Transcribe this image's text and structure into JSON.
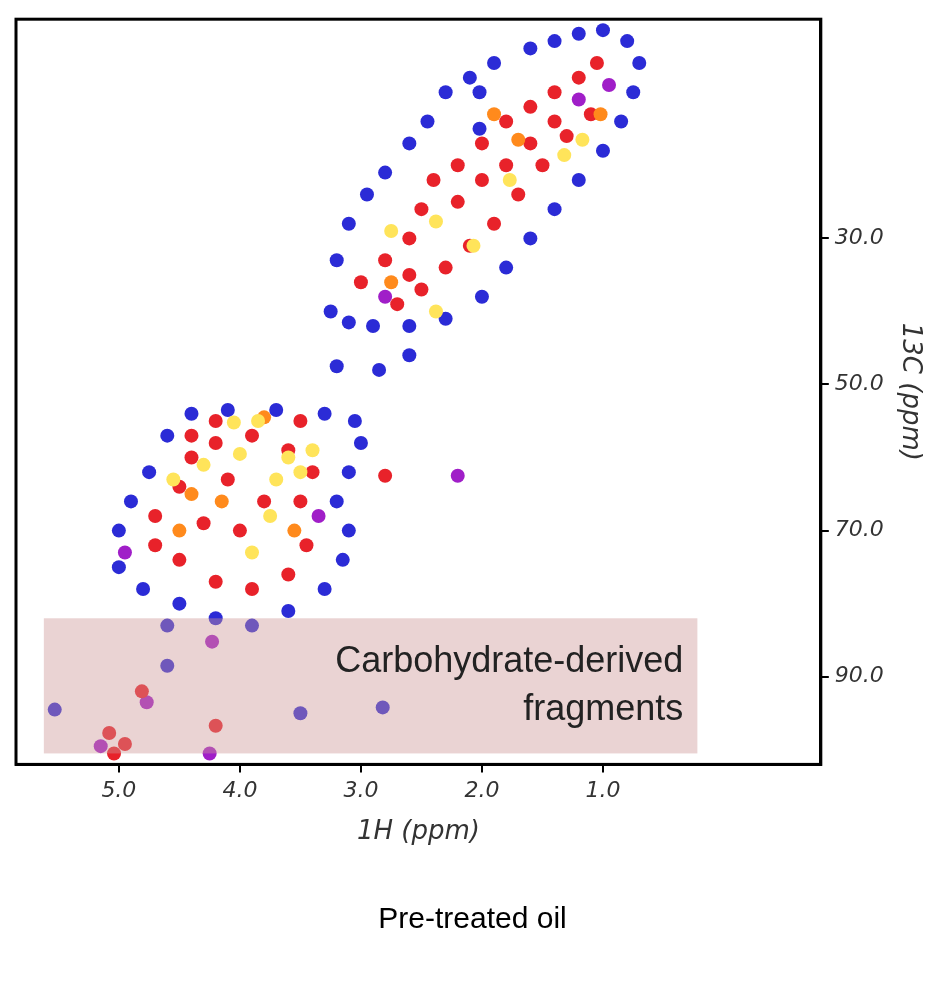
{
  "chart_data": {
    "type": "scatter",
    "title": "Pre-treated oil",
    "x_label": "1H (ppm)",
    "y_label": "13C (ppm)",
    "marker": "circle",
    "grid": false,
    "xlim": [
      5.85,
      -0.8
    ],
    "ylim": [
      102,
      0
    ],
    "xticks": [
      {
        "value": 5,
        "label": "5.0"
      },
      {
        "value": 4,
        "label": "4.0"
      },
      {
        "value": 3,
        "label": "3.0"
      },
      {
        "value": 2,
        "label": "2.0"
      },
      {
        "value": 1,
        "label": "1.0"
      }
    ],
    "yticks": [
      {
        "value": 30,
        "label": "30.0"
      },
      {
        "value": 50,
        "label": "50.0"
      },
      {
        "value": 70,
        "label": "70.0"
      },
      {
        "value": 90,
        "label": "90.0"
      }
    ],
    "annotations": [
      {
        "lines": [
          "Carbohydrate-derived",
          "fragments"
        ],
        "x": [
          5.62,
          0.22
        ],
        "y": [
          82,
          100.5
        ]
      }
    ],
    "x": [
      3.25,
      3.2,
      3.1,
      2.95,
      2.8,
      2.6,
      2.45,
      2.3,
      2.1,
      1.9,
      1.6,
      1.4,
      1.2,
      1.0,
      0.8,
      0.7,
      0.75,
      0.85,
      1.0,
      1.2,
      1.4,
      1.6,
      1.8,
      2.0,
      2.3,
      2.6,
      2.9,
      3.1,
      2.02,
      2.02,
      5.0,
      4.9,
      4.75,
      4.6,
      4.4,
      4.1,
      3.7,
      3.3,
      3.05,
      3.0,
      3.1,
      3.2,
      3.1,
      3.15,
      3.3,
      3.6,
      3.9,
      4.2,
      4.5,
      4.8,
      5.0,
      4.6,
      3.2,
      2.85,
      2.6,
      3.5,
      2.82,
      5.53,
      4.6,
      2.2,
      4.23,
      4.25,
      4.77,
      5.15,
      2.8,
      1.2,
      0.95,
      4.95,
      3.35,
      3.0,
      2.8,
      2.6,
      2.5,
      2.4,
      2.2,
      2.0,
      1.8,
      1.6,
      1.4,
      1.2,
      1.05,
      1.1,
      1.3,
      1.5,
      1.7,
      1.9,
      2.1,
      2.3,
      2.5,
      2.7,
      2.2,
      1.8,
      1.4,
      2.6,
      2.0,
      1.6,
      4.7,
      4.5,
      4.4,
      4.2,
      3.9,
      3.6,
      3.4,
      3.45,
      3.6,
      3.9,
      4.2,
      4.5,
      4.7,
      4.0,
      4.3,
      3.8,
      4.1,
      3.5,
      4.4,
      4.2,
      3.5,
      2.8,
      4.81,
      5.08,
      4.2,
      5.04,
      4.95,
      2.75,
      1.7,
      1.9,
      1.02,
      4.15,
      4.4,
      4.5,
      3.55,
      3.8,
      2.38,
      2.75,
      2.07,
      1.77,
      1.32,
      1.17,
      2.38,
      3.6,
      3.5,
      3.7,
      3.4,
      4.0,
      4.3,
      4.55,
      3.75,
      3.9,
      3.85,
      4.05
    ],
    "values": [
      40,
      33,
      28,
      24,
      21,
      17,
      14,
      10,
      8,
      6,
      4,
      3,
      2,
      1.5,
      3,
      6,
      10,
      14,
      18,
      22,
      26,
      30,
      34,
      38,
      41,
      42,
      42,
      41.5,
      10,
      15,
      70,
      66,
      62,
      57,
      54,
      53.5,
      53.5,
      54,
      55,
      58,
      62,
      66,
      70,
      74,
      78,
      81,
      83,
      82,
      80,
      78,
      75,
      83,
      47.5,
      48,
      46,
      95,
      94.2,
      94.5,
      88.5,
      62.5,
      85.2,
      100.5,
      93.5,
      99.5,
      38,
      11,
      9,
      73,
      68,
      36,
      33,
      30,
      26,
      22,
      20,
      17,
      14,
      12,
      10,
      8,
      6,
      13,
      16,
      20,
      24,
      28,
      31,
      34,
      37,
      39,
      25,
      20,
      14,
      35,
      22,
      17,
      68,
      64,
      60,
      58,
      57,
      59,
      62,
      72,
      76,
      78,
      77,
      74,
      72,
      70,
      69,
      66,
      63,
      66,
      57,
      55,
      55,
      62.5,
      92,
      97.7,
      96.7,
      100.5,
      99.2,
      36,
      16.5,
      13,
      13,
      66,
      65,
      70,
      70,
      54.5,
      27.7,
      29,
      31,
      22,
      18.6,
      16.5,
      40,
      60,
      62,
      63,
      59,
      59.5,
      61,
      63,
      68,
      73,
      55,
      55.2
    ],
    "colors": [
      "#2b2bd6",
      "#2b2bd6",
      "#2b2bd6",
      "#2b2bd6",
      "#2b2bd6",
      "#2b2bd6",
      "#2b2bd6",
      "#2b2bd6",
      "#2b2bd6",
      "#2b2bd6",
      "#2b2bd6",
      "#2b2bd6",
      "#2b2bd6",
      "#2b2bd6",
      "#2b2bd6",
      "#2b2bd6",
      "#2b2bd6",
      "#2b2bd6",
      "#2b2bd6",
      "#2b2bd6",
      "#2b2bd6",
      "#2b2bd6",
      "#2b2bd6",
      "#2b2bd6",
      "#2b2bd6",
      "#2b2bd6",
      "#2b2bd6",
      "#2b2bd6",
      "#2b2bd6",
      "#2b2bd6",
      "#2b2bd6",
      "#2b2bd6",
      "#2b2bd6",
      "#2b2bd6",
      "#2b2bd6",
      "#2b2bd6",
      "#2b2bd6",
      "#2b2bd6",
      "#2b2bd6",
      "#2b2bd6",
      "#2b2bd6",
      "#2b2bd6",
      "#2b2bd6",
      "#2b2bd6",
      "#2b2bd6",
      "#2b2bd6",
      "#2b2bd6",
      "#2b2bd6",
      "#2b2bd6",
      "#2b2bd6",
      "#2b2bd6",
      "#2b2bd6",
      "#2b2bd6",
      "#2b2bd6",
      "#2b2bd6",
      "#2b2bd6",
      "#2b2bd6",
      "#2b2bd6",
      "#2b2bd6",
      "#a01ec8",
      "#a01ec8",
      "#a01ec8",
      "#a01ec8",
      "#a01ec8",
      "#a01ec8",
      "#a01ec8",
      "#a01ec8",
      "#a01ec8",
      "#a01ec8",
      "#e8222a",
      "#e8222a",
      "#e8222a",
      "#e8222a",
      "#e8222a",
      "#e8222a",
      "#e8222a",
      "#e8222a",
      "#e8222a",
      "#e8222a",
      "#e8222a",
      "#e8222a",
      "#e8222a",
      "#e8222a",
      "#e8222a",
      "#e8222a",
      "#e8222a",
      "#e8222a",
      "#e8222a",
      "#e8222a",
      "#e8222a",
      "#e8222a",
      "#e8222a",
      "#e8222a",
      "#e8222a",
      "#e8222a",
      "#e8222a",
      "#e8222a",
      "#e8222a",
      "#e8222a",
      "#e8222a",
      "#e8222a",
      "#e8222a",
      "#e8222a",
      "#e8222a",
      "#e8222a",
      "#e8222a",
      "#e8222a",
      "#e8222a",
      "#e8222a",
      "#e8222a",
      "#e8222a",
      "#e8222a",
      "#e8222a",
      "#e8222a",
      "#e8222a",
      "#e8222a",
      "#e8222a",
      "#e8222a",
      "#e8222a",
      "#e8222a",
      "#e8222a",
      "#e8222a",
      "#e8222a",
      "#ff8a1c",
      "#ff8a1c",
      "#ff8a1c",
      "#ff8a1c",
      "#ff8a1c",
      "#ff8a1c",
      "#ff8a1c",
      "#ff8a1c",
      "#ff8a1c",
      "#ffe45a",
      "#ffe45a",
      "#ffe45a",
      "#ffe45a",
      "#ffe45a",
      "#ffe45a",
      "#ffe45a",
      "#ffe45a",
      "#ffe45a",
      "#ffe45a",
      "#ffe45a",
      "#ffe45a",
      "#ffe45a",
      "#ffe45a",
      "#ffe45a",
      "#ffe45a",
      "#ffe45a",
      "#ffe45a"
    ]
  }
}
